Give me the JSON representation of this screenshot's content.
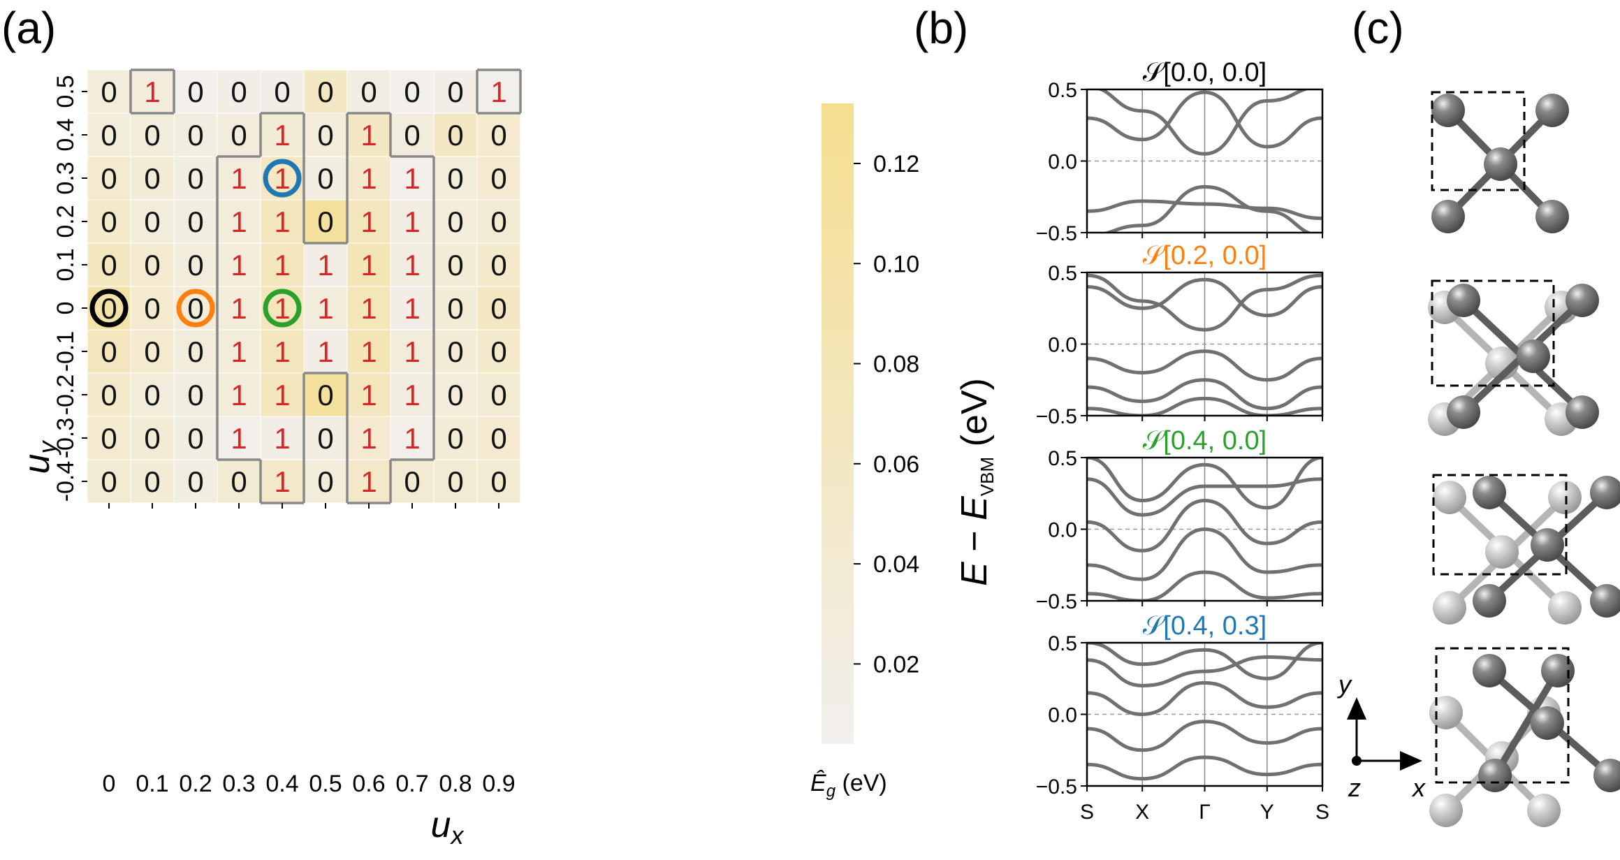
{
  "panel_labels": [
    "(a)",
    "(b)",
    "(c)"
  ],
  "colors": {
    "cmap_low": "#f2efed",
    "cmap_high": "#f4de8e",
    "zero_text": "#111111",
    "one_text": "#d62728",
    "boundary": "#888888",
    "band_line": "#707070",
    "circle_black": "#000000",
    "circle_orange": "#ff7f0e",
    "circle_green": "#2ca02c",
    "circle_blue": "#1f77b4",
    "atom_dark": "#6a6a6a",
    "atom_light": "#c8c8c8"
  },
  "chart_data": [
    {
      "type": "heatmap",
      "panel": "(a)",
      "xlabel": "u_x",
      "ylabel": "u_y",
      "x_ticks": [
        "0",
        "0.1",
        "0.2",
        "0.3",
        "0.4",
        "0.5",
        "0.6",
        "0.7",
        "0.8",
        "0.9"
      ],
      "y_ticks": [
        "0.5",
        "0.4",
        "0.3",
        "0.2",
        "0.1",
        "0",
        "-0.1",
        "-0.2",
        "-0.3",
        "-0.4"
      ],
      "cell_labels": [
        [
          0,
          1,
          0,
          0,
          0,
          0,
          0,
          0,
          0,
          1
        ],
        [
          0,
          0,
          0,
          0,
          1,
          0,
          1,
          0,
          0,
          0
        ],
        [
          0,
          0,
          0,
          1,
          1,
          0,
          1,
          1,
          0,
          0
        ],
        [
          0,
          0,
          0,
          1,
          1,
          0,
          1,
          1,
          0,
          0
        ],
        [
          0,
          0,
          0,
          1,
          1,
          1,
          1,
          1,
          0,
          0
        ],
        [
          0,
          0,
          0,
          1,
          1,
          1,
          1,
          1,
          0,
          0
        ],
        [
          0,
          0,
          0,
          1,
          1,
          1,
          1,
          1,
          0,
          0
        ],
        [
          0,
          0,
          0,
          1,
          1,
          0,
          1,
          1,
          0,
          0
        ],
        [
          0,
          0,
          0,
          1,
          1,
          0,
          1,
          1,
          0,
          0
        ],
        [
          0,
          0,
          0,
          0,
          1,
          0,
          1,
          0,
          0,
          0
        ]
      ],
      "gap_values": [
        [
          0.03,
          0.025,
          0.005,
          0.012,
          0.012,
          0.06,
          0.018,
          0.01,
          0.012,
          0.01
        ],
        [
          0.03,
          0.03,
          0.02,
          0.025,
          0.035,
          0.03,
          0.06,
          0.025,
          0.06,
          0.045
        ],
        [
          0.045,
          0.035,
          0.02,
          0.025,
          0.06,
          0.02,
          0.05,
          0.01,
          0.03,
          0.045
        ],
        [
          0.05,
          0.03,
          0.02,
          0.025,
          0.07,
          0.11,
          0.07,
          0.02,
          0.03,
          0.04
        ],
        [
          0.065,
          0.045,
          0.025,
          0.03,
          0.07,
          0.015,
          0.08,
          0.02,
          0.035,
          0.05
        ],
        [
          0.095,
          0.045,
          0.025,
          0.03,
          0.07,
          0.025,
          0.075,
          0.015,
          0.035,
          0.06
        ],
        [
          0.07,
          0.045,
          0.025,
          0.03,
          0.07,
          0.015,
          0.08,
          0.025,
          0.035,
          0.05
        ],
        [
          0.05,
          0.03,
          0.02,
          0.025,
          0.07,
          0.11,
          0.07,
          0.02,
          0.03,
          0.04
        ],
        [
          0.045,
          0.035,
          0.02,
          0.01,
          0.015,
          0.02,
          0.045,
          0.01,
          0.035,
          0.045
        ],
        [
          0.04,
          0.035,
          0.02,
          0.04,
          0.055,
          0.03,
          0.055,
          0.04,
          0.04,
          0.04
        ]
      ],
      "colorbar": {
        "label": "Ê_g (eV)",
        "ticks": [
          "0.12",
          "0.10",
          "0.08",
          "0.06",
          "0.04",
          "0.02"
        ],
        "tick_values": [
          0.12,
          0.1,
          0.08,
          0.06,
          0.04,
          0.02
        ],
        "range": [
          0.004,
          0.132
        ]
      },
      "highlight_circles": [
        {
          "ux": "0",
          "uy": "0",
          "color": "black"
        },
        {
          "ux": "0.2",
          "uy": "0",
          "color": "orange"
        },
        {
          "ux": "0.4",
          "uy": "0",
          "color": "green"
        },
        {
          "ux": "0.4",
          "uy": "0.3",
          "color": "blue"
        }
      ]
    },
    {
      "type": "line",
      "panel": "(b)",
      "ylabel": "E − E_VBM (eV)",
      "ylim": [
        -0.5,
        0.5
      ],
      "y_ticks": [
        "0.5",
        "0.0",
        "−0.5"
      ],
      "x_ticks": [
        "S",
        "X",
        "Γ",
        "Y",
        "S"
      ],
      "subplots": [
        {
          "title": "𝒮[0.0, 0.0]",
          "color": "black"
        },
        {
          "title": "𝒮[0.2, 0.0]",
          "color": "orange"
        },
        {
          "title": "𝒮[0.4, 0.0]",
          "color": "green"
        },
        {
          "title": "𝒮[0.4, 0.3]",
          "color": "blue"
        }
      ]
    }
  ],
  "structure_panel": {
    "axes": {
      "y": "y",
      "z": "z",
      "x": "x"
    }
  }
}
